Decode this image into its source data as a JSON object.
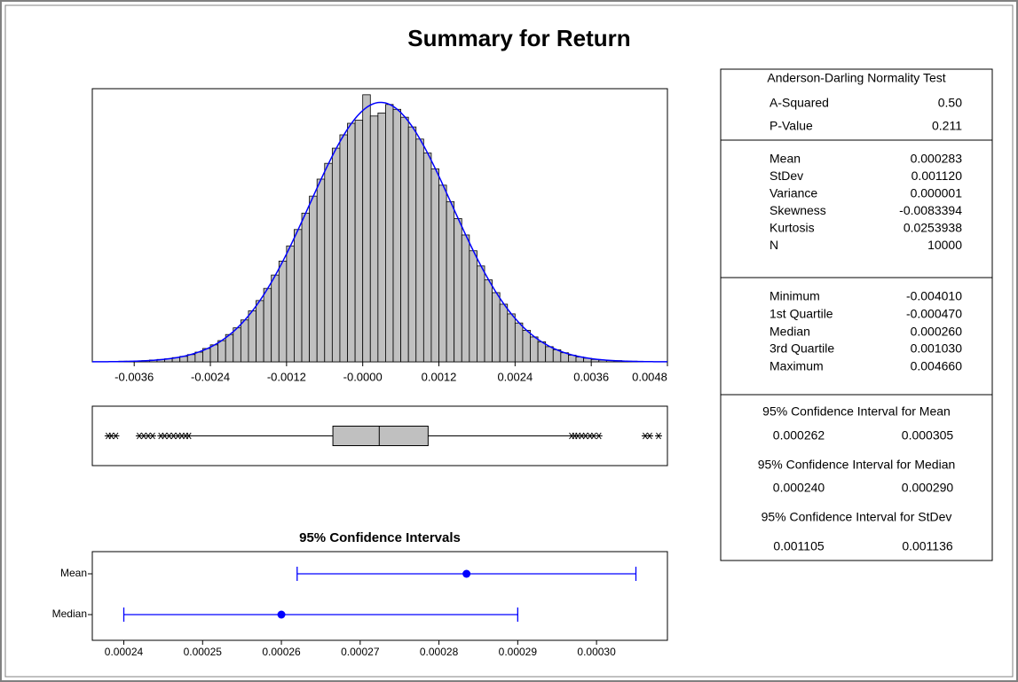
{
  "title": "Summary for Return",
  "chart_data": [
    {
      "type": "histogram",
      "bins": [
        -0.00384,
        -0.00372,
        -0.0036,
        -0.00348,
        -0.00336,
        -0.00324,
        -0.00312,
        -0.003,
        -0.00288,
        -0.00276,
        -0.00264,
        -0.00252,
        -0.0024,
        -0.00228,
        -0.00216,
        -0.00204,
        -0.00192,
        -0.0018,
        -0.00168,
        -0.00156,
        -0.00144,
        -0.00132,
        -0.0012,
        -0.00108,
        -0.00096,
        -0.00084,
        -0.00072,
        -0.0006,
        -0.00048,
        -0.00036,
        -0.00024,
        -0.00012,
        0,
        0.00012,
        0.00024,
        0.00036,
        0.00048,
        0.0006,
        0.00072,
        0.00084,
        0.00096,
        0.00108,
        0.0012,
        0.00132,
        0.00144,
        0.00156,
        0.00168,
        0.0018,
        0.00192,
        0.00204,
        0.00216,
        0.00228,
        0.0024,
        0.00252,
        0.00264,
        0.00276,
        0.00288,
        0.003,
        0.00312,
        0.00324,
        0.00336,
        0.00348,
        0.0036,
        0.00372,
        0.00384,
        0.00396,
        0.00408,
        0.0042,
        0.00432
      ],
      "values": [
        1,
        1,
        1,
        2,
        3,
        4,
        5,
        7,
        9,
        12,
        16,
        22,
        28,
        35,
        45,
        56,
        69,
        84,
        101,
        121,
        143,
        166,
        191,
        218,
        245,
        273,
        301,
        327,
        352,
        374,
        393,
        398,
        440,
        405,
        410,
        424,
        416,
        403,
        387,
        367,
        344,
        318,
        291,
        264,
        236,
        209,
        183,
        158,
        135,
        114,
        95,
        79,
        64,
        52,
        41,
        33,
        25,
        20,
        15,
        11,
        8,
        6,
        4,
        3,
        2,
        2,
        1,
        1
      ],
      "color": "#c0c0c0",
      "curve_color": "#0000ff",
      "xlim": [
        -0.00426,
        0.0048
      ],
      "xticks": [
        -0.0036,
        -0.0024,
        -0.0012,
        {
          "value": 0,
          "label": "-0.0000"
        },
        0.0012,
        0.0024,
        0.0036,
        0.0048
      ],
      "ylim": [
        0,
        450
      ]
    },
    {
      "type": "box",
      "q1": -0.00047,
      "median": 0.00026,
      "q3": 0.00103,
      "whisker_low": -0.00269,
      "whisker_high": 0.00325,
      "outliers": [
        -0.00401,
        -0.00396,
        -0.00389,
        -0.00352,
        -0.00345,
        -0.00338,
        -0.00331,
        -0.00318,
        -0.00312,
        -0.00305,
        -0.00298,
        -0.00291,
        -0.00285,
        -0.00279,
        -0.00274,
        0.00329,
        0.00334,
        0.00339,
        0.00345,
        0.00351,
        0.00358,
        0.00364,
        0.00372,
        0.00445,
        0.00452,
        0.00466
      ],
      "color": "#c0c0c0",
      "xlim": [
        -0.00426,
        0.0048
      ]
    },
    {
      "type": "interval",
      "title": "95% Confidence Intervals",
      "categories": [
        "Mean",
        "Median"
      ],
      "values": [
        0.0002835,
        0.00026
      ],
      "lower": [
        0.000262,
        0.00024
      ],
      "upper": [
        0.000305,
        0.00029
      ],
      "color": "#0000ff",
      "xlim": [
        0.000236,
        0.000309
      ],
      "xticks": [
        0.00024,
        0.00025,
        0.00026,
        0.00027,
        0.00028,
        0.00029,
        {
          "value": 0.0003,
          "label": "0.00030"
        }
      ]
    }
  ],
  "stats": {
    "sections": [
      {
        "title": "Anderson-Darling Normality Test",
        "rows": [
          [
            "A-Squared",
            "0.50"
          ],
          [
            "P-Value",
            "0.211"
          ]
        ]
      },
      {
        "rows": [
          [
            "Mean",
            "0.000283"
          ],
          [
            "StDev",
            "0.001120"
          ],
          [
            "Variance",
            "0.000001"
          ],
          [
            "Skewness",
            "-0.0083394"
          ],
          [
            "Kurtosis",
            "0.0253938"
          ],
          [
            "N",
            "10000"
          ]
        ]
      },
      {
        "rows": [
          [
            "Minimum",
            "-0.004010"
          ],
          [
            "1st Quartile",
            "-0.000470"
          ],
          [
            "Median",
            "0.000260"
          ],
          [
            "3rd Quartile",
            "0.001030"
          ],
          [
            "Maximum",
            "0.004660"
          ]
        ]
      }
    ],
    "intervals": [
      {
        "title": "95% Confidence Interval for Mean",
        "values": [
          "0.000262",
          "0.000305"
        ]
      },
      {
        "title": "95% Confidence Interval for Median",
        "values": [
          "0.000240",
          "0.000290"
        ]
      },
      {
        "title": "95% Confidence Interval for StDev",
        "values": [
          "0.001105",
          "0.001136"
        ]
      }
    ]
  }
}
